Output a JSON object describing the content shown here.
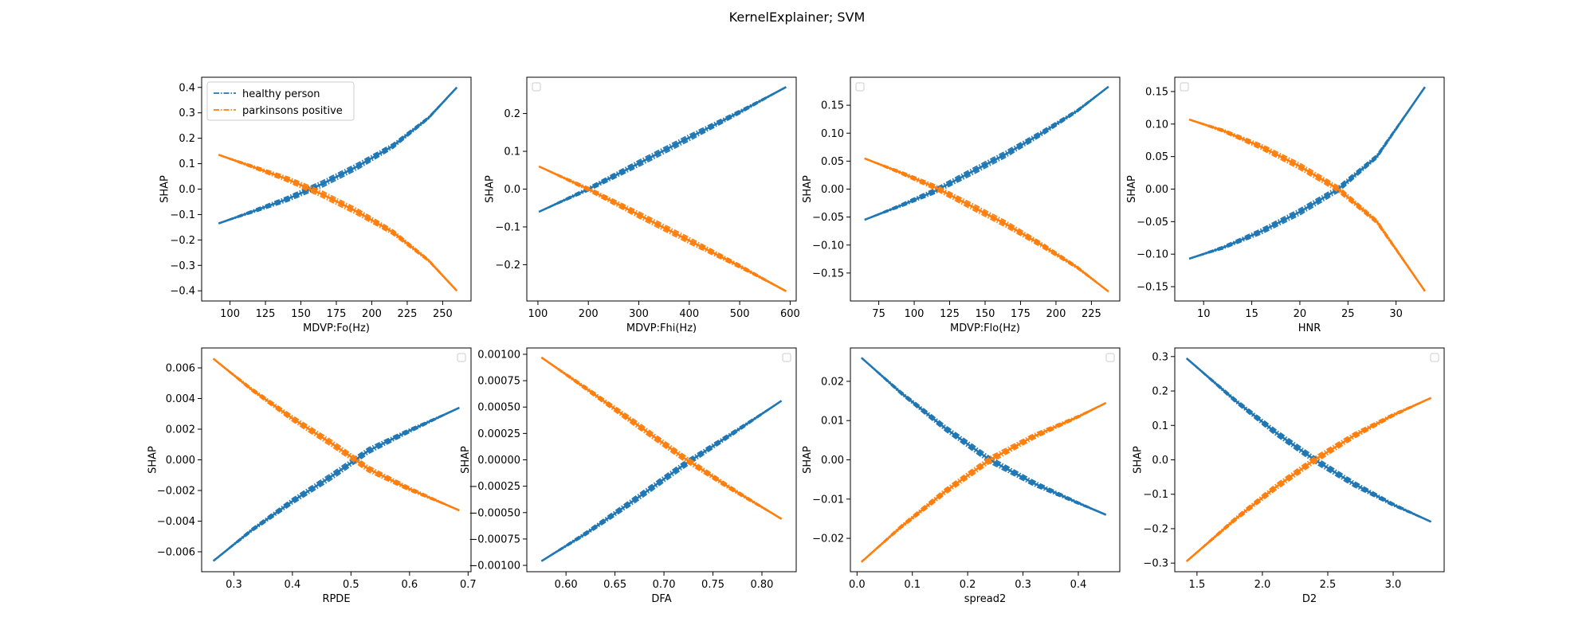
{
  "figure": {
    "title": "KernelExplainer; SVM",
    "colors": {
      "healthy": "#1f77b4",
      "parkinsons": "#ff7f0e"
    }
  },
  "chart_data": [
    {
      "type": "line",
      "xlabel": "MDVP:Fo(Hz)",
      "ylabel": "SHAP",
      "xlim": [
        80,
        270
      ],
      "ylim": [
        -0.44,
        0.44
      ],
      "xticks": [
        100,
        125,
        150,
        175,
        200,
        225,
        250
      ],
      "xticklabels": [
        "100",
        "125",
        "150",
        "175",
        "200",
        "225",
        "250"
      ],
      "yticks": [
        -0.4,
        -0.3,
        -0.2,
        -0.1,
        0.0,
        0.1,
        0.2,
        0.3,
        0.4
      ],
      "yticklabels": [
        "−0.4",
        "−0.3",
        "−0.2",
        "−0.1",
        "0.0",
        "0.1",
        "0.2",
        "0.3",
        "0.4"
      ],
      "legend": {
        "show": true,
        "position": "upper-left",
        "entries": [
          "healthy person",
          "parkinsons positive"
        ]
      },
      "series": [
        {
          "name": "healthy person",
          "color": "#1f77b4",
          "x": [
            92,
            115,
            140,
            165,
            190,
            215,
            240,
            260
          ],
          "y": [
            -0.135,
            -0.09,
            -0.04,
            0.02,
            0.09,
            0.17,
            0.28,
            0.4
          ]
        },
        {
          "name": "parkinsons positive",
          "color": "#ff7f0e",
          "x": [
            92,
            115,
            140,
            165,
            190,
            215,
            240,
            260
          ],
          "y": [
            0.135,
            0.09,
            0.04,
            -0.02,
            -0.09,
            -0.17,
            -0.28,
            -0.4
          ]
        }
      ]
    },
    {
      "type": "line",
      "xlabel": "MDVP:Fhi(Hz)",
      "ylabel": "SHAP",
      "xlim": [
        78,
        612
      ],
      "ylim": [
        -0.296,
        0.296
      ],
      "xticks": [
        100,
        200,
        300,
        400,
        500,
        600
      ],
      "xticklabels": [
        "100",
        "200",
        "300",
        "400",
        "500",
        "600"
      ],
      "yticks": [
        -0.2,
        -0.1,
        0.0,
        0.1,
        0.2
      ],
      "yticklabels": [
        "−0.2",
        "−0.1",
        "0.0",
        "0.1",
        "0.2"
      ],
      "legend": {
        "show": true,
        "position": "upper-left",
        "entries": []
      },
      "series": [
        {
          "color": "#1f77b4",
          "x": [
            102,
            200,
            300,
            400,
            500,
            592
          ],
          "y": [
            -0.06,
            0.0,
            0.068,
            0.136,
            0.204,
            0.27
          ]
        },
        {
          "color": "#ff7f0e",
          "x": [
            102,
            200,
            300,
            400,
            500,
            592
          ],
          "y": [
            0.06,
            0.0,
            -0.068,
            -0.136,
            -0.204,
            -0.27
          ]
        }
      ]
    },
    {
      "type": "line",
      "xlabel": "MDVP:Flo(Hz)",
      "ylabel": "SHAP",
      "xlim": [
        55,
        245
      ],
      "ylim": [
        -0.2,
        0.2
      ],
      "xticks": [
        75,
        100,
        125,
        150,
        175,
        200,
        225
      ],
      "xticklabels": [
        "75",
        "100",
        "125",
        "150",
        "175",
        "200",
        "225"
      ],
      "yticks": [
        -0.15,
        -0.1,
        -0.05,
        0.0,
        0.05,
        0.1,
        0.15
      ],
      "yticklabels": [
        "−0.15",
        "−0.10",
        "−0.05",
        "0.00",
        "0.05",
        "0.10",
        "0.15"
      ],
      "legend": {
        "show": true,
        "position": "upper-left",
        "entries": []
      },
      "series": [
        {
          "color": "#1f77b4",
          "x": [
            65,
            90,
            115,
            140,
            165,
            190,
            215,
            237
          ],
          "y": [
            -0.055,
            -0.03,
            -0.003,
            0.03,
            0.063,
            0.1,
            0.14,
            0.183
          ]
        },
        {
          "color": "#ff7f0e",
          "x": [
            65,
            90,
            115,
            140,
            165,
            190,
            215,
            237
          ],
          "y": [
            0.055,
            0.03,
            0.003,
            -0.03,
            -0.063,
            -0.1,
            -0.14,
            -0.183
          ]
        }
      ]
    },
    {
      "type": "line",
      "xlabel": "HNR",
      "ylabel": "SHAP",
      "xlim": [
        7,
        35
      ],
      "ylim": [
        -0.172,
        0.172
      ],
      "xticks": [
        10,
        15,
        20,
        25,
        30
      ],
      "xticklabels": [
        "10",
        "15",
        "20",
        "25",
        "30"
      ],
      "yticks": [
        -0.15,
        -0.1,
        -0.05,
        0.0,
        0.05,
        0.1,
        0.15
      ],
      "yticklabels": [
        "−0.15",
        "−0.10",
        "−0.05",
        "0.00",
        "0.05",
        "0.10",
        "0.15"
      ],
      "legend": {
        "show": true,
        "position": "upper-left",
        "entries": []
      },
      "series": [
        {
          "color": "#1f77b4",
          "x": [
            8.5,
            12,
            16,
            20,
            24,
            28,
            33
          ],
          "y": [
            -0.107,
            -0.09,
            -0.065,
            -0.035,
            0.0,
            0.05,
            0.157
          ]
        },
        {
          "color": "#ff7f0e",
          "x": [
            8.5,
            12,
            16,
            20,
            24,
            28,
            33
          ],
          "y": [
            0.107,
            0.09,
            0.065,
            0.035,
            0.0,
            -0.05,
            -0.157
          ]
        }
      ]
    },
    {
      "type": "line",
      "xlabel": "RPDE",
      "ylabel": "SHAP",
      "xlim": [
        0.245,
        0.705
      ],
      "ylim": [
        -0.0073,
        0.0073
      ],
      "xticks": [
        0.3,
        0.4,
        0.5,
        0.6,
        0.7
      ],
      "xticklabels": [
        "0.3",
        "0.4",
        "0.5",
        "0.6",
        "0.7"
      ],
      "yticks": [
        -0.006,
        -0.004,
        -0.002,
        0.0,
        0.002,
        0.004,
        0.006
      ],
      "yticklabels": [
        "−0.006",
        "−0.004",
        "−0.002",
        "0.000",
        "0.002",
        "0.004",
        "0.006"
      ],
      "legend": {
        "show": true,
        "position": "upper-right",
        "entries": []
      },
      "series": [
        {
          "color": "#1f77b4",
          "x": [
            0.265,
            0.33,
            0.4,
            0.47,
            0.53,
            0.6,
            0.685
          ],
          "y": [
            -0.0066,
            -0.0046,
            -0.0027,
            -0.001,
            0.0006,
            0.0019,
            0.0034
          ]
        },
        {
          "color": "#ff7f0e",
          "x": [
            0.265,
            0.33,
            0.4,
            0.47,
            0.53,
            0.6,
            0.685
          ],
          "y": [
            0.0066,
            0.0046,
            0.0027,
            0.001,
            -0.0006,
            -0.0019,
            -0.0033
          ]
        }
      ]
    },
    {
      "type": "line",
      "xlabel": "DFA",
      "ylabel": "SHAP",
      "xlim": [
        0.56,
        0.835
      ],
      "ylim": [
        -0.00106,
        0.00106
      ],
      "xticks": [
        0.6,
        0.65,
        0.7,
        0.75,
        0.8
      ],
      "xticklabels": [
        "0.60",
        "0.65",
        "0.70",
        "0.75",
        "0.80"
      ],
      "yticks": [
        -0.001,
        -0.00075,
        -0.0005,
        -0.00025,
        0.0,
        0.00025,
        0.0005,
        0.00075,
        0.001
      ],
      "yticklabels": [
        "−0.00100",
        "−0.00075",
        "−0.00050",
        "−0.00025",
        "0.00000",
        "0.00025",
        "0.00050",
        "0.00075",
        "0.00100"
      ],
      "legend": {
        "show": true,
        "position": "upper-right",
        "entries": []
      },
      "series": [
        {
          "color": "#1f77b4",
          "x": [
            0.575,
            0.62,
            0.67,
            0.72,
            0.77,
            0.82
          ],
          "y": [
            -0.00096,
            -0.0007,
            -0.00038,
            -5e-05,
            0.00025,
            0.00056
          ]
        },
        {
          "color": "#ff7f0e",
          "x": [
            0.575,
            0.62,
            0.67,
            0.72,
            0.77,
            0.82
          ],
          "y": [
            0.00097,
            0.00068,
            0.00035,
            2e-05,
            -0.00028,
            -0.00056
          ]
        }
      ]
    },
    {
      "type": "line",
      "xlabel": "spread2",
      "ylabel": "SHAP",
      "xlim": [
        -0.012,
        0.475
      ],
      "ylim": [
        -0.0285,
        0.0285
      ],
      "xticks": [
        0.0,
        0.1,
        0.2,
        0.3,
        0.4
      ],
      "xticklabels": [
        "0.0",
        "0.1",
        "0.2",
        "0.3",
        "0.4"
      ],
      "yticks": [
        -0.02,
        -0.01,
        0.0,
        0.01,
        0.02
      ],
      "yticklabels": [
        "−0.02",
        "−0.01",
        "0.00",
        "0.01",
        "0.02"
      ],
      "legend": {
        "show": true,
        "position": "upper-right",
        "entries": []
      },
      "series": [
        {
          "color": "#1f77b4",
          "x": [
            0.008,
            0.08,
            0.16,
            0.24,
            0.32,
            0.4,
            0.45
          ],
          "y": [
            0.026,
            0.017,
            0.008,
            0.0,
            -0.006,
            -0.011,
            -0.014
          ]
        },
        {
          "color": "#ff7f0e",
          "x": [
            0.008,
            0.08,
            0.16,
            0.24,
            0.32,
            0.4,
            0.45
          ],
          "y": [
            -0.026,
            -0.017,
            -0.008,
            0.0,
            0.006,
            0.011,
            0.0145
          ]
        }
      ]
    },
    {
      "type": "line",
      "xlabel": "D2",
      "ylabel": "SHAP",
      "xlim": [
        1.33,
        3.39
      ],
      "ylim": [
        -0.325,
        0.325
      ],
      "xticks": [
        1.5,
        2.0,
        2.5,
        3.0
      ],
      "xticklabels": [
        "1.5",
        "2.0",
        "2.5",
        "3.0"
      ],
      "yticks": [
        -0.3,
        -0.2,
        -0.1,
        0.0,
        0.1,
        0.2,
        0.3
      ],
      "yticklabels": [
        "−0.3",
        "−0.2",
        "−0.1",
        "0.0",
        "0.1",
        "0.2",
        "0.3"
      ],
      "legend": {
        "show": true,
        "position": "upper-right",
        "entries": []
      },
      "series": [
        {
          "color": "#1f77b4",
          "x": [
            1.42,
            1.8,
            2.1,
            2.4,
            2.7,
            3.0,
            3.29
          ],
          "y": [
            0.295,
            0.17,
            0.08,
            0.0,
            -0.07,
            -0.13,
            -0.18
          ]
        },
        {
          "color": "#ff7f0e",
          "x": [
            1.42,
            1.8,
            2.1,
            2.4,
            2.7,
            3.0,
            3.29
          ],
          "y": [
            -0.295,
            -0.17,
            -0.08,
            0.0,
            0.07,
            0.13,
            0.18
          ]
        }
      ]
    }
  ]
}
